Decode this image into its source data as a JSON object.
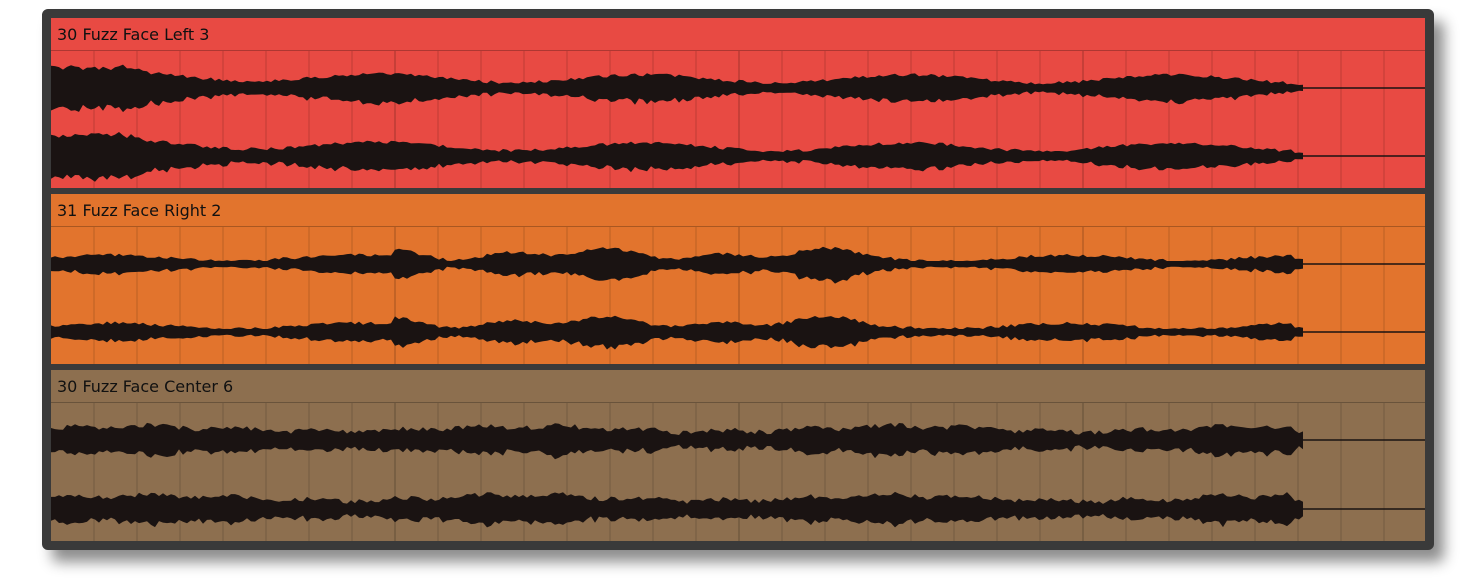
{
  "clips": [
    {
      "name": "30 Fuzz Face Left 3",
      "color": "#e84a43"
    },
    {
      "name": "31 Fuzz Face Right 2",
      "color": "#e2742d"
    },
    {
      "name": "30 Fuzz Face Center 6",
      "color": "#8d6f4f"
    }
  ],
  "colors": {
    "frame": "#3a3a3a",
    "waveform": "#1a1312",
    "gridline": "rgba(0,0,0,0.18)"
  }
}
